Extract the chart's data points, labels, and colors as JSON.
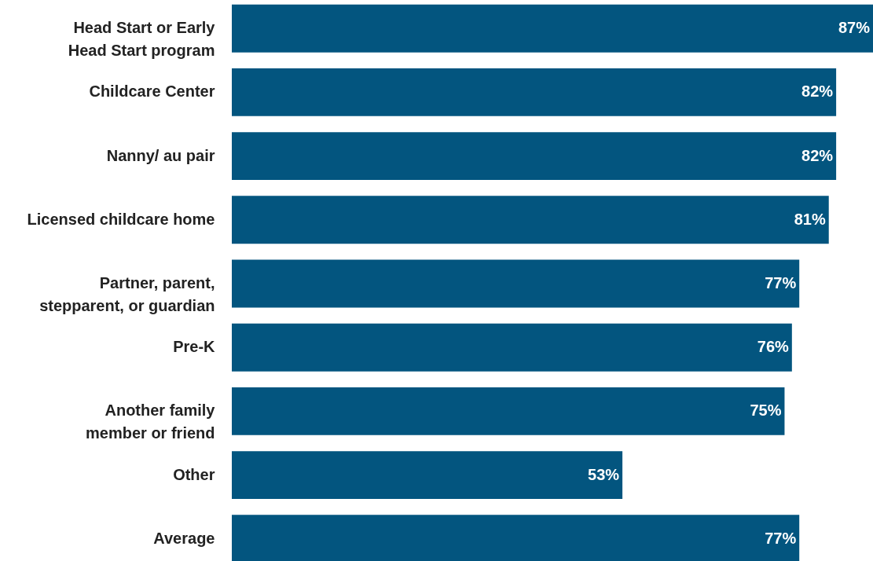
{
  "chart_data": {
    "type": "bar",
    "orientation": "horizontal",
    "categories": [
      "Head Start or Early\nHead Start program",
      "Childcare Center",
      "Nanny/ au pair",
      "Licensed childcare home",
      "Partner, parent,\nstepparent, or guardian",
      "Pre-K",
      "Another family\nmember or friend",
      "Other",
      "Average"
    ],
    "values": [
      87,
      82,
      82,
      81,
      77,
      76,
      75,
      53,
      77
    ],
    "value_labels": [
      "87%",
      "82%",
      "82%",
      "81%",
      "77%",
      "76%",
      "75%",
      "53%",
      "77%"
    ],
    "color": "#03557f"
  }
}
